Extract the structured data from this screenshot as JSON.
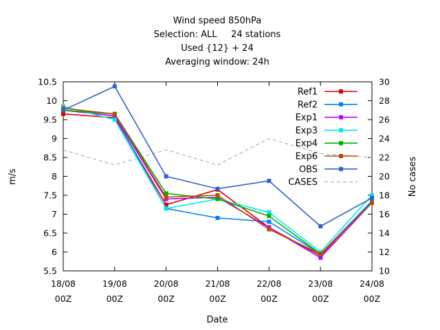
{
  "chart_data": {
    "type": "line",
    "title_lines": [
      "Wind speed 850hPa",
      "Selection: ALL     24 stations",
      "Used {12} + 24",
      "Averaging window: 24h"
    ],
    "xlabel": "Date",
    "ylabel": "m/s",
    "y2label": "No cases",
    "categories": [
      "18/08 00Z",
      "19/08 00Z",
      "20/08 00Z",
      "21/08 00Z",
      "22/08 00Z",
      "23/08 00Z",
      "24/08 00Z"
    ],
    "x_tick_lines": [
      [
        "18/08",
        "00Z"
      ],
      [
        "19/08",
        "00Z"
      ],
      [
        "20/08",
        "00Z"
      ],
      [
        "21/08",
        "00Z"
      ],
      [
        "22/08",
        "00Z"
      ],
      [
        "23/08",
        "00Z"
      ],
      [
        "24/08",
        "00Z"
      ]
    ],
    "ylim": [
      5.5,
      10.5
    ],
    "yticks": [
      "5.5",
      "6",
      "6.5",
      "7",
      "7.5",
      "8",
      "8.5",
      "9",
      "9.5",
      "10",
      "10.5"
    ],
    "y2lim": [
      10,
      30
    ],
    "y2ticks": [
      "10",
      "12",
      "14",
      "16",
      "18",
      "20",
      "22",
      "24",
      "26",
      "28",
      "30"
    ],
    "grid": false,
    "legend_position": "top-right",
    "series": [
      {
        "name": "Ref1",
        "color": "#e00000",
        "marker": "square",
        "axis": "y1",
        "values": [
          9.65,
          9.55,
          7.25,
          7.65,
          6.65,
          5.9,
          7.35
        ]
      },
      {
        "name": "Ref2",
        "color": "#0080ff",
        "marker": "square",
        "axis": "y1",
        "values": [
          9.75,
          9.6,
          7.15,
          6.9,
          6.8,
          5.95,
          7.35
        ]
      },
      {
        "name": "Exp1",
        "color": "#c000ff",
        "marker": "square",
        "axis": "y1",
        "values": [
          9.75,
          9.6,
          7.4,
          7.45,
          6.65,
          5.85,
          7.3
        ]
      },
      {
        "name": "Exp3",
        "color": "#00e8e8",
        "marker": "square",
        "axis": "y1",
        "values": [
          9.85,
          9.5,
          7.15,
          7.4,
          7.05,
          6.0,
          7.5
        ]
      },
      {
        "name": "Exp4",
        "color": "#00b000",
        "marker": "square",
        "axis": "y1",
        "values": [
          9.75,
          9.65,
          7.55,
          7.4,
          6.95,
          5.95,
          7.3
        ]
      },
      {
        "name": "Exp6",
        "color": "#b05000",
        "marker": "square",
        "axis": "y1",
        "values": [
          9.8,
          9.65,
          7.45,
          7.5,
          6.6,
          5.95,
          7.3
        ]
      },
      {
        "name": "OBS",
        "color": "#3060d0",
        "marker": "square",
        "axis": "y1",
        "values": [
          9.75,
          10.38,
          8.0,
          7.67,
          7.88,
          6.68,
          7.43
        ]
      },
      {
        "name": "CASES",
        "color": "#a0a0a0",
        "marker": "none",
        "dashed": true,
        "axis": "y2",
        "values": [
          22.8,
          21.2,
          22.8,
          21.2,
          24.0,
          22.4,
          22.0
        ]
      }
    ]
  }
}
